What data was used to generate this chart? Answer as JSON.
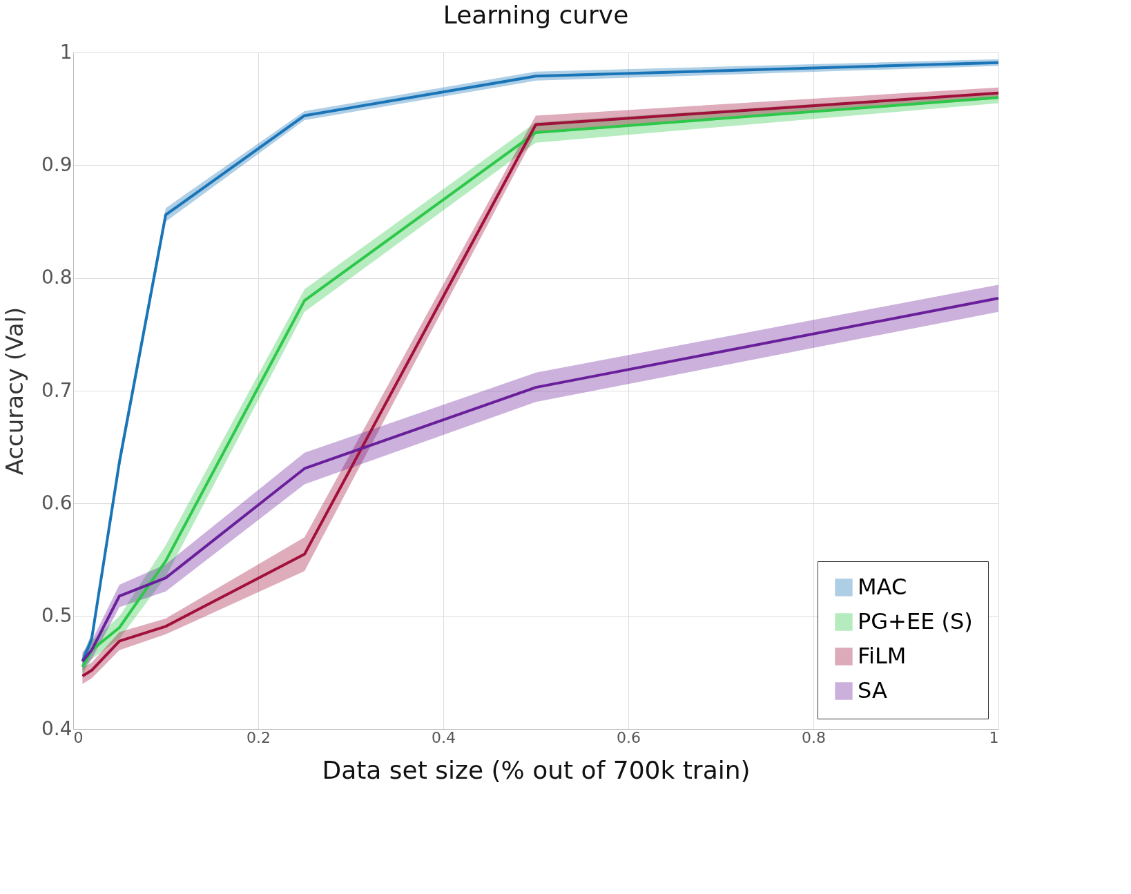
{
  "chart_data": {
    "type": "line",
    "title": "Learning curve",
    "xlabel": "Data set size (% out of 700k train)",
    "ylabel": "Accuracy (Val)",
    "xlim": [
      0,
      1
    ],
    "xticks": [
      0,
      0.2,
      0.4,
      0.6,
      0.8,
      1
    ],
    "ylim": [
      0.4,
      1
    ],
    "yticks": [
      0.4,
      0.5,
      0.6,
      0.7,
      0.8,
      0.9,
      1
    ],
    "grid": true,
    "legend": "bottom right",
    "marker": "none",
    "line_style": "solid",
    "series": [
      {
        "name": "MAC",
        "color": "#1a75b8",
        "x": [
          0.01,
          0.02,
          0.05,
          0.1,
          0.25,
          0.5,
          1
        ],
        "values": [
          0.46,
          0.48,
          0.637,
          0.856,
          0.944,
          0.979,
          0.991
        ],
        "lower": [
          0.455,
          0.475,
          0.63,
          0.85,
          0.94,
          0.975,
          0.988
        ],
        "upper": [
          0.465,
          0.485,
          0.644,
          0.862,
          0.948,
          0.983,
          0.994
        ]
      },
      {
        "name": "PG+EE (S)",
        "color": "#2dc84a",
        "x": [
          0.01,
          0.02,
          0.05,
          0.1,
          0.25,
          0.5,
          1
        ],
        "values": [
          0.455,
          0.47,
          0.49,
          0.549,
          0.78,
          0.929,
          0.96
        ],
        "lower": [
          0.448,
          0.462,
          0.48,
          0.535,
          0.77,
          0.92,
          0.955
        ],
        "upper": [
          0.462,
          0.478,
          0.5,
          0.563,
          0.79,
          0.938,
          0.965
        ]
      },
      {
        "name": "FiLM",
        "color": "#a0103a",
        "x": [
          0.01,
          0.02,
          0.05,
          0.1,
          0.25,
          0.5,
          1
        ],
        "values": [
          0.447,
          0.452,
          0.478,
          0.491,
          0.555,
          0.936,
          0.964
        ],
        "lower": [
          0.44,
          0.445,
          0.47,
          0.484,
          0.54,
          0.928,
          0.959
        ],
        "upper": [
          0.454,
          0.459,
          0.486,
          0.498,
          0.57,
          0.944,
          0.969
        ]
      },
      {
        "name": "SA",
        "color": "#6a1f9a",
        "x": [
          0.01,
          0.02,
          0.05,
          0.1,
          0.25,
          0.5,
          1
        ],
        "values": [
          0.46,
          0.47,
          0.518,
          0.534,
          0.631,
          0.703,
          0.782
        ],
        "lower": [
          0.452,
          0.462,
          0.508,
          0.522,
          0.617,
          0.69,
          0.77
        ],
        "upper": [
          0.468,
          0.478,
          0.528,
          0.546,
          0.645,
          0.716,
          0.794
        ]
      }
    ]
  }
}
